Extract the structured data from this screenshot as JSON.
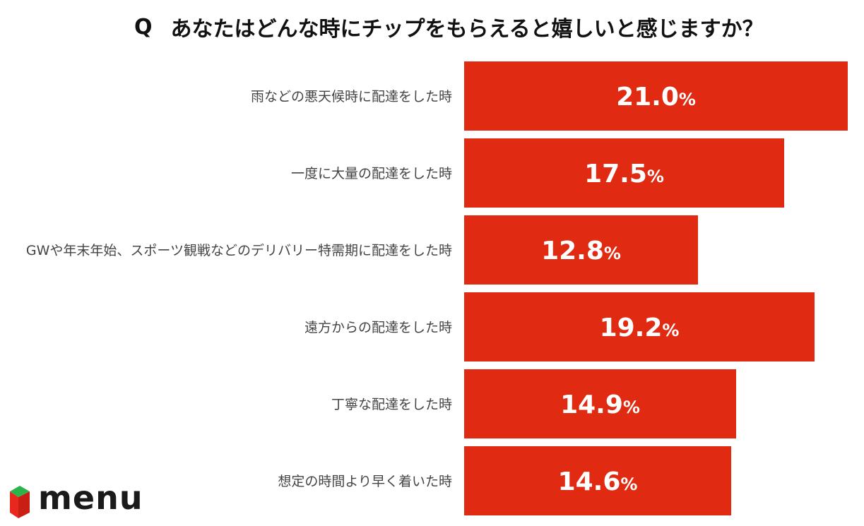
{
  "title": {
    "q": "Q",
    "text": "あなたはどんな時にチップをもらえると嬉しいと感じますか？"
  },
  "logo": {
    "text": "menu",
    "icon": "menu-logo-icon",
    "colors": [
      "#e8281e",
      "#2cb34a"
    ]
  },
  "colors": {
    "bar": "#e02a12",
    "label_text": "#444444",
    "value_text": "#ffffff"
  },
  "chart_data": {
    "type": "bar",
    "orientation": "horizontal",
    "categories": [
      "雨などの悪天候時に配達をした時",
      "一度に大量の配達をした時",
      "GWや年末年始、スポーツ観戦などのデリバリー特需期に配達をした時",
      "遠方からの配達をした時",
      "丁寧な配達をした時",
      "想定の時間より早く着いた時"
    ],
    "values": [
      21.0,
      17.5,
      12.8,
      19.2,
      14.9,
      14.6
    ],
    "value_labels": [
      "21.0",
      "17.5",
      "12.8",
      "19.2",
      "14.9",
      "14.6"
    ],
    "unit": "%",
    "title": "あなたはどんな時にチップをもらえると嬉しいと感じますか？",
    "xlabel": "",
    "ylabel": "",
    "xlim": [
      0,
      21.0
    ],
    "grid": false,
    "legend": "none"
  }
}
